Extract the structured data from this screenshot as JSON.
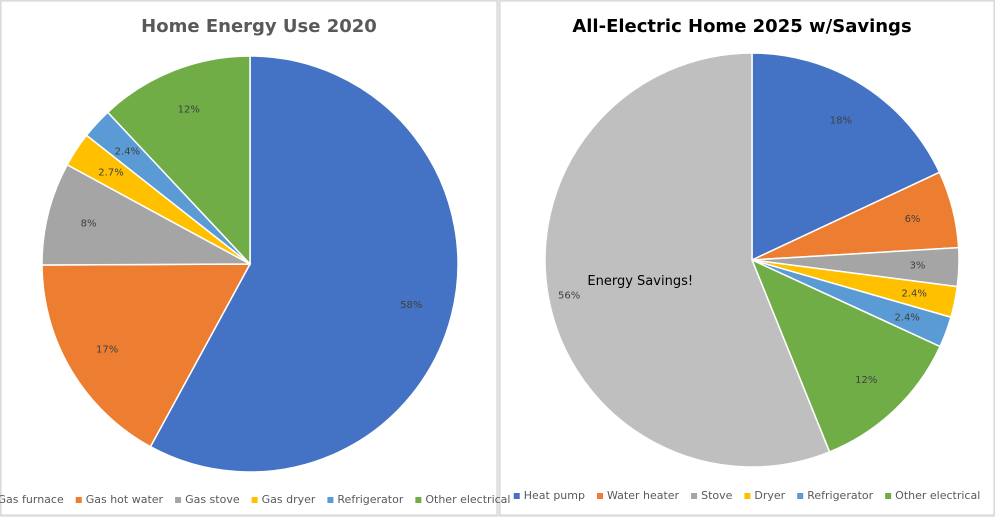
{
  "chart_data": [
    {
      "type": "pie",
      "title": "Home Energy Use 2020",
      "categories": [
        "Gas furnace",
        "Gas hot water",
        "Gas stove",
        "Gas dryer",
        "Refrigerator",
        "Other electrical"
      ],
      "values": [
        58,
        17,
        8,
        2.7,
        2.4,
        12
      ],
      "value_labels": [
        "58%",
        "17%",
        "8%",
        "2.7%",
        "2.4%",
        "12%"
      ],
      "colors": [
        "#4472c4",
        "#ed7d31",
        "#a5a5a5",
        "#ffc000",
        "#5b9bd5",
        "#70ad47"
      ],
      "legend": "bottom"
    },
    {
      "type": "pie",
      "title": "All-Electric Home 2025 w/Savings",
      "categories": [
        "Heat pump",
        "Water heater",
        "Stove",
        "Dryer",
        "Refrigerator",
        "Other electrical",
        null
      ],
      "values": [
        18,
        6,
        3,
        2.4,
        2.4,
        12,
        56
      ],
      "value_labels": [
        "18%",
        "6%",
        "3%",
        "2.4%",
        "2.4%",
        "12%",
        "56%"
      ],
      "colors": [
        "#4472c4",
        "#ed7d31",
        "#a5a5a5",
        "#ffc000",
        "#5b9bd5",
        "#70ad47",
        "#bfbfbf"
      ],
      "annotation": "Energy Savings!",
      "legend": "bottom"
    }
  ]
}
